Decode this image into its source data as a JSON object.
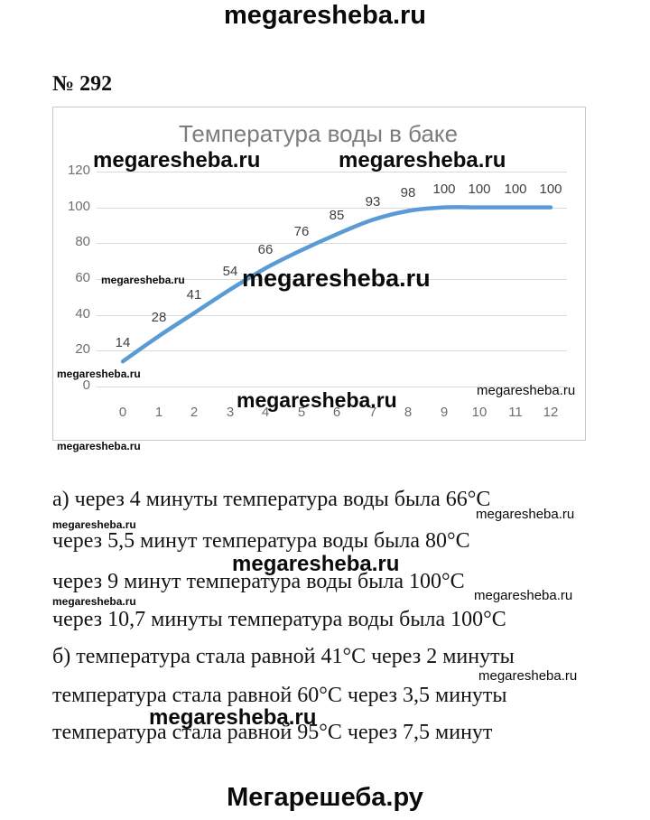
{
  "page": {
    "top_watermark": "megaresheba.ru",
    "problem_number": "№ 292",
    "footer": "Мегарешеба.ру"
  },
  "watermark": {
    "text": "megaresheba.ru"
  },
  "chart_data": {
    "type": "line",
    "title": "Температура воды в баке",
    "x": [
      0,
      1,
      2,
      3,
      4,
      5,
      6,
      7,
      8,
      9,
      10,
      11,
      12
    ],
    "series": [
      {
        "name": "Температура воды",
        "values": [
          14,
          28,
          41,
          54,
          66,
          76,
          85,
          93,
          98,
          100,
          100,
          100,
          100
        ]
      }
    ],
    "data_labels": [
      14,
      28,
      41,
      54,
      66,
      76,
      85,
      93,
      98,
      100,
      100,
      100,
      100
    ],
    "xlabel": "",
    "ylabel": "",
    "yticks": [
      0,
      20,
      40,
      60,
      80,
      100,
      120
    ],
    "xticks": [
      0,
      1,
      2,
      3,
      4,
      5,
      6,
      7,
      8,
      9,
      10,
      11,
      12
    ],
    "ylim": [
      0,
      130
    ],
    "xlim": [
      0,
      12
    ],
    "grid": true,
    "legend": false,
    "smooth": true,
    "line_color": "#5b9bd5",
    "grid_color": "#d9d9d9",
    "title_color": "#7d7d7d",
    "tick_color": "#6e6e6e",
    "data_label_color": "#404040"
  },
  "solution": {
    "lines": [
      "а) через 4 минуты температура воды была 66°С",
      "через 5,5 минут температура воды была 80°С",
      "через 9 минут температура воды была 100°С",
      "через 10,7 минуты температура воды была 100°С",
      "б) температура стала равной 41°С через 2 минуты",
      "температура стала равной 60°С через 3,5 минуты",
      "температура стала равной 95°С через 7,5 минут"
    ]
  }
}
